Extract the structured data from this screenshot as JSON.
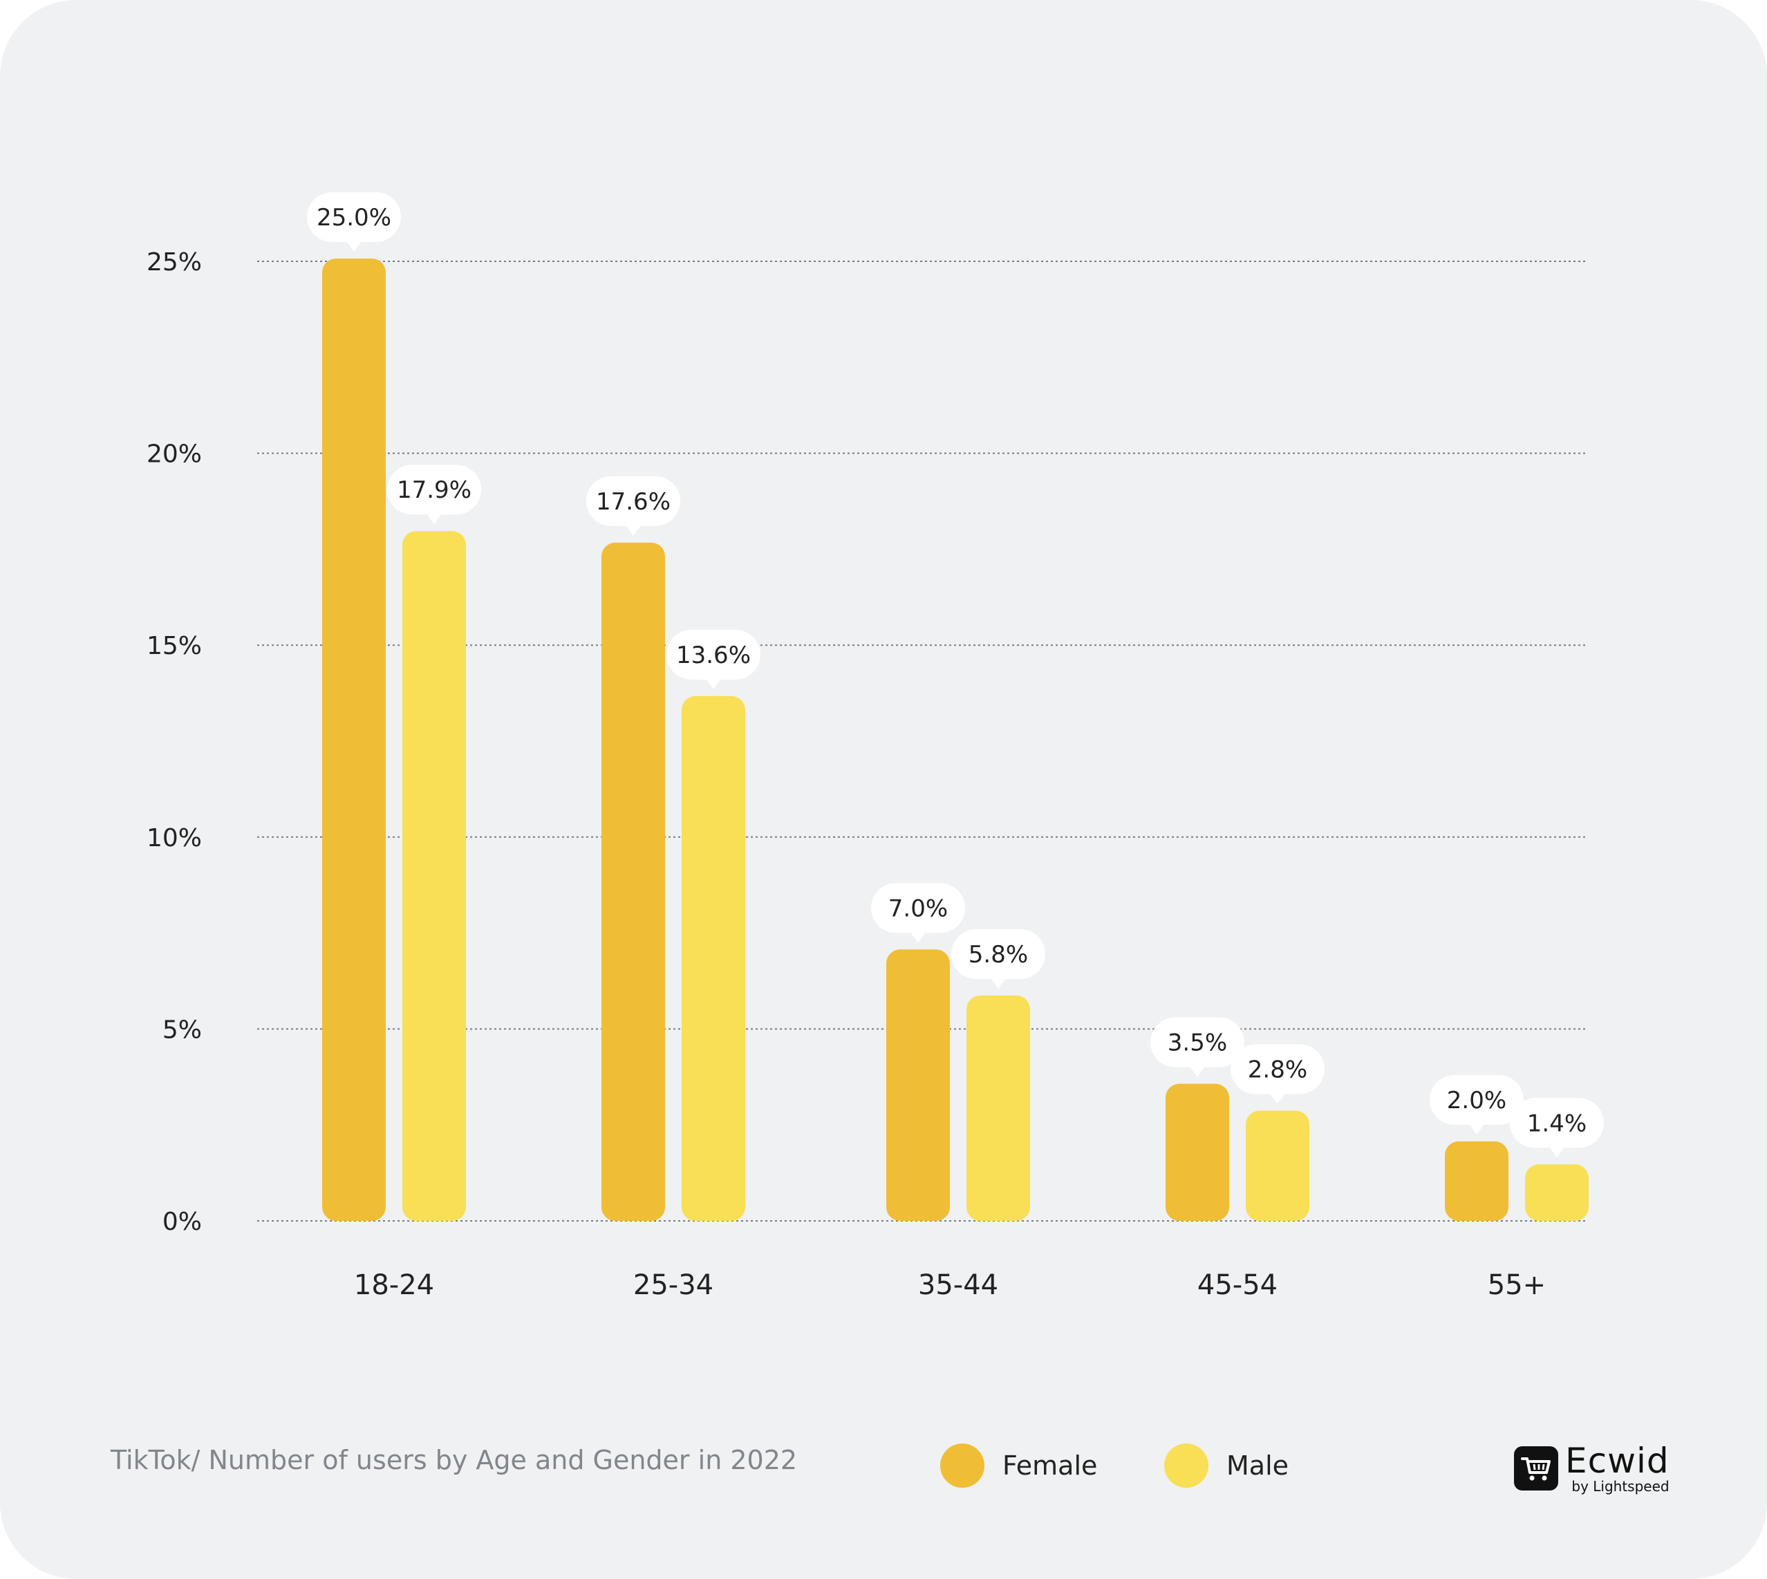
{
  "chart_data": {
    "type": "bar",
    "title": "TikTok/ Number of users by Age and Gender in 2022",
    "categories": [
      "18-24",
      "25-34",
      "35-44",
      "45-54",
      "55+"
    ],
    "series": [
      {
        "name": "Female",
        "color": "#f0bd36",
        "values": [
          25.0,
          17.6,
          7.0,
          3.5,
          2.0
        ],
        "labels": [
          "25.0%",
          "17.6%",
          "7.0%",
          "3.5%",
          "2.0%"
        ]
      },
      {
        "name": "Male",
        "color": "#f8df55",
        "values": [
          17.9,
          13.6,
          5.8,
          2.8,
          1.4
        ],
        "labels": [
          "17.9%",
          "13.6%",
          "5.8%",
          "2.8%",
          "1.4%"
        ]
      }
    ],
    "yticks": [
      0,
      5,
      10,
      15,
      20,
      25
    ],
    "ytick_labels": [
      "0%",
      "5%",
      "10%",
      "15%",
      "20%",
      "25%"
    ],
    "ylim": [
      0,
      25
    ],
    "xlabel": "",
    "ylabel": "",
    "grid": true,
    "legend_position": "bottom"
  },
  "footer": {
    "title": "TikTok/ Number of users by Age and Gender in 2022"
  },
  "legend": [
    {
      "label": "Female",
      "color": "#f0bd36"
    },
    {
      "label": "Male",
      "color": "#f8df55"
    }
  ],
  "logo": {
    "name": "Ecwid",
    "sub": "by Lightspeed"
  }
}
